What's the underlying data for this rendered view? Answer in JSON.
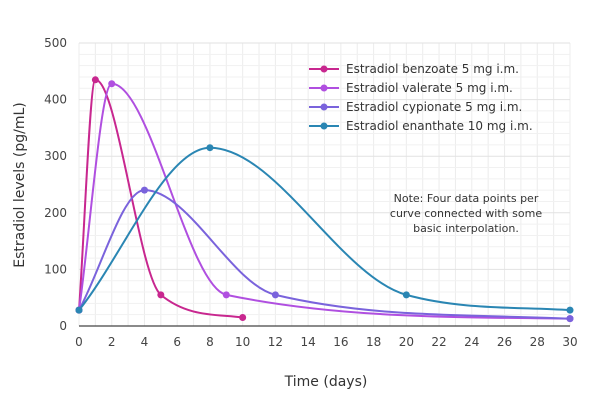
{
  "chart_data": {
    "type": "line",
    "xlabel": "Time (days)",
    "ylabel": "Estradiol levels (pg/mL)",
    "xlim": [
      0,
      30
    ],
    "ylim": [
      0,
      500
    ],
    "x_ticks": [
      "0",
      "2",
      "4",
      "6",
      "8",
      "10",
      "12",
      "14",
      "16",
      "18",
      "20",
      "22",
      "24",
      "26",
      "28",
      "30"
    ],
    "y_ticks": [
      "0",
      "100",
      "200",
      "300",
      "400",
      "500"
    ],
    "grid": true,
    "legend_position": "top-right",
    "note": [
      "Note: Four data points per",
      "curve connected with some",
      "basic interpolation."
    ],
    "series": [
      {
        "name": "Estradiol benzoate 5 mg i.m.",
        "color": "#c8278f",
        "points": [
          [
            0,
            28
          ],
          [
            1,
            435
          ],
          [
            5,
            55
          ],
          [
            10,
            15
          ]
        ]
      },
      {
        "name": "Estradiol valerate 5 mg i.m.",
        "color": "#b04fe0",
        "points": [
          [
            0,
            28
          ],
          [
            2,
            428
          ],
          [
            9,
            55
          ],
          [
            30,
            13
          ]
        ]
      },
      {
        "name": "Estradiol cypionate 5 mg i.m.",
        "color": "#7a63dc",
        "points": [
          [
            0,
            28
          ],
          [
            4,
            240
          ],
          [
            12,
            55
          ],
          [
            30,
            13
          ]
        ]
      },
      {
        "name": "Estradiol enanthate 10 mg i.m.",
        "color": "#2a86b3",
        "points": [
          [
            0,
            28
          ],
          [
            8,
            315
          ],
          [
            20,
            55
          ],
          [
            30,
            28
          ]
        ]
      }
    ]
  }
}
